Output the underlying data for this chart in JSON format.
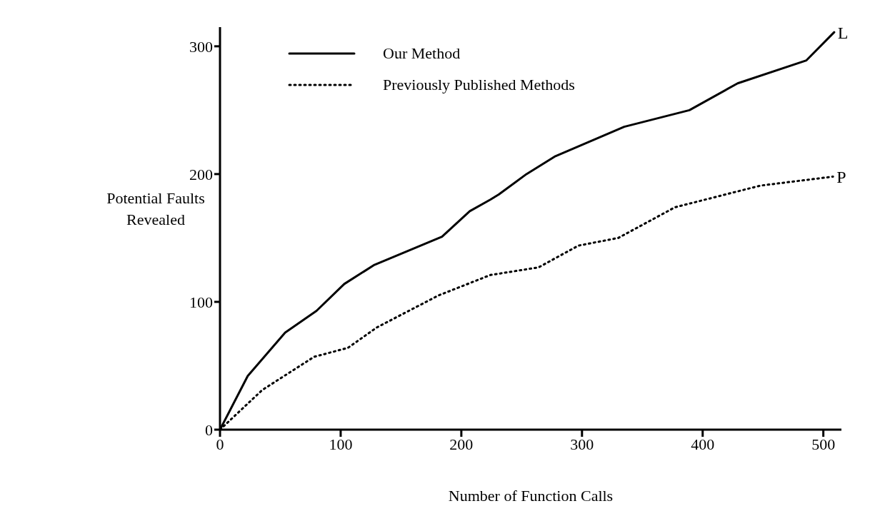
{
  "chart_data": {
    "type": "line",
    "xlabel": "Number of Function Calls",
    "ylabel": "Potential Faults Revealed",
    "xlim": [
      0,
      515
    ],
    "ylim": [
      0,
      315
    ],
    "xticks": [
      0,
      100,
      200,
      300,
      400,
      500
    ],
    "yticks": [
      0,
      100,
      200,
      300
    ],
    "grid": false,
    "legend": "top left",
    "marker": "none",
    "series": [
      {
        "name": "Our Method",
        "color": "#000000",
        "line_style": "solid",
        "x": [
          0,
          23,
          54,
          80,
          103,
          128,
          184,
          207,
          224,
          231,
          254,
          278,
          335,
          389,
          429,
          486,
          509
        ],
        "values": [
          0,
          42,
          76,
          93,
          114,
          129,
          151,
          171,
          180,
          184,
          200,
          214,
          237,
          250,
          271,
          289,
          311
        ]
      },
      {
        "name": "Previously Published Methods",
        "color": "#000000",
        "line_style": "dotted",
        "x": [
          0,
          35,
          78,
          106,
          130,
          181,
          224,
          264,
          297,
          330,
          377,
          448,
          508
        ],
        "values": [
          0,
          31,
          57,
          64,
          80,
          105,
          121,
          127,
          144,
          150,
          174,
          191,
          198
        ]
      }
    ],
    "annotations": [
      {
        "text": "L",
        "x": 509,
        "y": 311
      },
      {
        "text": "P",
        "x": 508,
        "y": 198
      }
    ]
  }
}
